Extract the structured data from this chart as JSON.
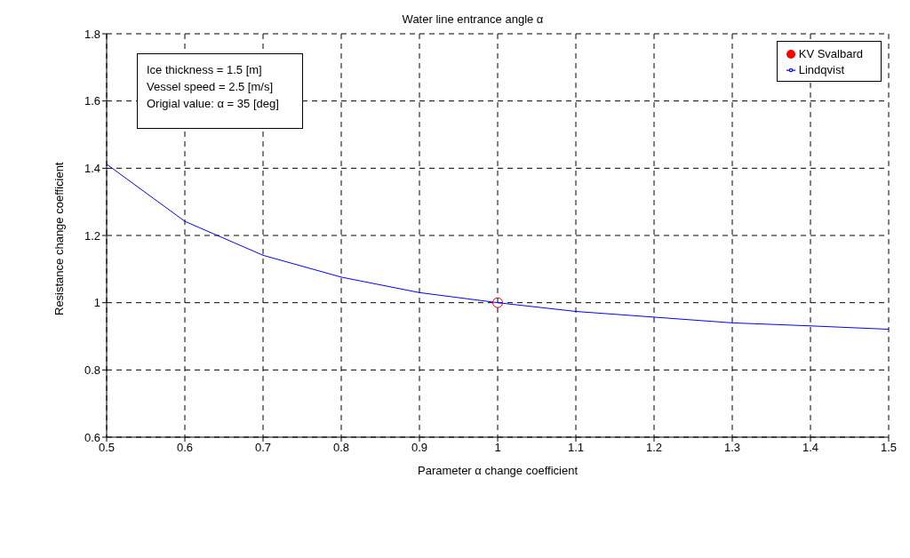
{
  "chart_data": {
    "type": "line",
    "title": "Water line entrance angle α",
    "xlabel": "Parameter α change coefficient",
    "ylabel": "Resistance change coefficient",
    "x": [
      0.5,
      0.6,
      0.7,
      0.8,
      0.9,
      1.0,
      1.1,
      1.2,
      1.3,
      1.4,
      1.5
    ],
    "series": [
      {
        "name": "Lindqvist",
        "color": "#0000ff",
        "values": [
          1.412,
          1.242,
          1.141,
          1.076,
          1.03,
          1.0,
          0.974,
          0.957,
          0.94,
          0.931,
          0.921
        ]
      },
      {
        "name": "KV Svalbard",
        "type": "scatter",
        "color": "#ff0000",
        "x": [
          1.0
        ],
        "values": [
          1.0
        ]
      }
    ],
    "annotations": [
      "Ice thickness = 1.5 [m]",
      "Vessel speed = 2.5 [m/s]",
      "Origial value: α = 35 [deg]"
    ],
    "xlim": [
      0.5,
      1.5
    ],
    "xticks": [
      0.5,
      0.6,
      0.7,
      0.8,
      0.9,
      1,
      1.1,
      1.2,
      1.3,
      1.4,
      1.5
    ],
    "ylim": [
      0.6,
      1.8
    ],
    "yticks": [
      0.6,
      0.8,
      1,
      1.2,
      1.4,
      1.6,
      1.8
    ],
    "grid": true,
    "legend": "top right",
    "line_style": "solid"
  }
}
